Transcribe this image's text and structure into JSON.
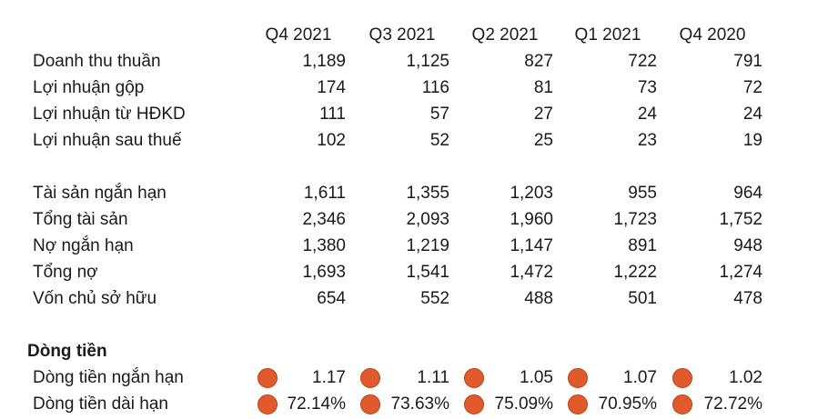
{
  "table": {
    "columns": [
      "Q4 2021",
      "Q3 2021",
      "Q2 2021",
      "Q1 2021",
      "Q4 2020"
    ],
    "income_rows": [
      {
        "label": "Doanh thu thuần",
        "values": [
          "1,189",
          "1,125",
          "827",
          "722",
          "791"
        ]
      },
      {
        "label": "Lợi nhuận gộp",
        "values": [
          "174",
          "116",
          "81",
          "73",
          "72"
        ]
      },
      {
        "label": "Lợi nhuận từ HĐKD",
        "values": [
          "111",
          "57",
          "27",
          "24",
          "24"
        ]
      },
      {
        "label": "Lợi nhuận sau thuế",
        "values": [
          "102",
          "52",
          "25",
          "23",
          "19"
        ]
      }
    ],
    "balance_rows": [
      {
        "label": "Tài sản ngắn hạn",
        "values": [
          "1,611",
          "1,355",
          "1,203",
          "955",
          "964"
        ]
      },
      {
        "label": "Tổng tài sản",
        "values": [
          "2,346",
          "2,093",
          "1,960",
          "1,723",
          "1,752"
        ]
      },
      {
        "label": "Nợ ngắn hạn",
        "values": [
          "1,380",
          "1,219",
          "1,147",
          "891",
          "948"
        ]
      },
      {
        "label": "Tổng nợ",
        "values": [
          "1,693",
          "1,541",
          "1,472",
          "1,222",
          "1,274"
        ]
      },
      {
        "label": "Vốn chủ sở hữu",
        "values": [
          "654",
          "552",
          "488",
          "501",
          "478"
        ]
      }
    ],
    "cashflow": {
      "title": "Dòng tiền",
      "indicator_color": "#e05a2b",
      "rows": [
        {
          "label": "Dòng tiền ngắn hạn",
          "values": [
            "1.17",
            "1.11",
            "1.05",
            "1.07",
            "1.02"
          ]
        },
        {
          "label": "Dòng tiền dài hạn",
          "values": [
            "72.14%",
            "73.63%",
            "75.09%",
            "70.95%",
            "72.72%"
          ]
        }
      ]
    }
  }
}
